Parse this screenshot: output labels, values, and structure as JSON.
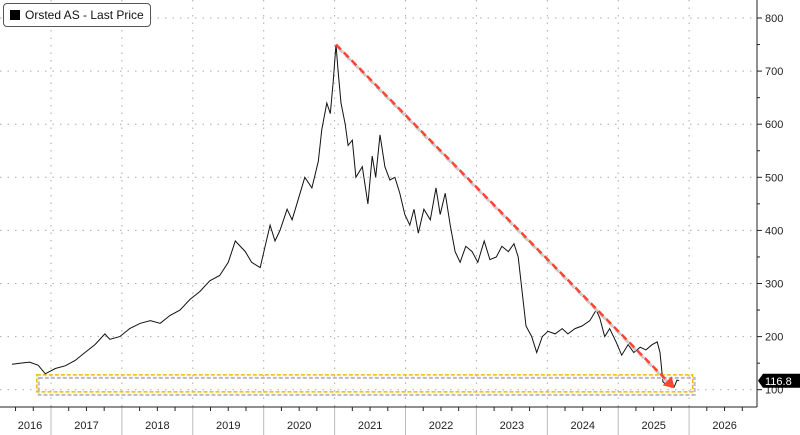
{
  "chart_data": {
    "type": "line",
    "title": "",
    "xlabel": "",
    "ylabel": "",
    "legend": {
      "position": "top-left",
      "entries": [
        "Orsted AS - Last Price"
      ]
    },
    "grid": true,
    "xlim": [
      2016.0,
      2026.0
    ],
    "ylim": [
      80,
      830
    ],
    "x_ticks": [
      "2016",
      "2017",
      "2018",
      "2019",
      "2020",
      "2021",
      "2022",
      "2023",
      "2024",
      "2025",
      "2026"
    ],
    "y_ticks": [
      100,
      200,
      300,
      400,
      500,
      600,
      700,
      800
    ],
    "last_value_label": "116.8",
    "series": [
      {
        "name": "Orsted AS - Last Price",
        "color": "#111111",
        "x": [
          2016.45,
          2016.56,
          2016.7,
          2016.82,
          2016.92,
          2017.06,
          2017.2,
          2017.34,
          2017.48,
          2017.62,
          2017.76,
          2017.83,
          2017.97,
          2018.11,
          2018.26,
          2018.4,
          2018.54,
          2018.68,
          2018.82,
          2018.96,
          2019.1,
          2019.24,
          2019.38,
          2019.5,
          2019.6,
          2019.74,
          2019.83,
          2019.95,
          2020.02,
          2020.09,
          2020.16,
          2020.23,
          2020.33,
          2020.4,
          2020.48,
          2020.58,
          2020.68,
          2020.77,
          2020.82,
          2020.89,
          2020.94,
          2020.98,
          2021.02,
          2021.05,
          2021.09,
          2021.15,
          2021.19,
          2021.25,
          2021.3,
          2021.39,
          2021.47,
          2021.53,
          2021.58,
          2021.64,
          2021.71,
          2021.78,
          2021.85,
          2021.92,
          2021.99,
          2022.06,
          2022.12,
          2022.18,
          2022.26,
          2022.35,
          2022.43,
          2022.49,
          2022.56,
          2022.63,
          2022.7,
          2022.77,
          2022.85,
          2022.94,
          2023.02,
          2023.11,
          2023.19,
          2023.28,
          2023.36,
          2023.45,
          2023.53,
          2023.59,
          2023.64,
          2023.7,
          2023.78,
          2023.85,
          2023.93,
          2024.01,
          2024.11,
          2024.21,
          2024.29,
          2024.39,
          2024.49,
          2024.6,
          2024.69,
          2024.74,
          2024.81,
          2024.88,
          2024.97,
          2025.05,
          2025.14,
          2025.22,
          2025.31,
          2025.39,
          2025.48,
          2025.55,
          2025.59,
          2025.63,
          2025.69,
          2025.73,
          2025.79,
          2025.83,
          2025.86
        ],
        "values": [
          148,
          150,
          152,
          146,
          130,
          140,
          145,
          155,
          170,
          185,
          205,
          195,
          200,
          215,
          225,
          230,
          225,
          240,
          250,
          270,
          285,
          305,
          315,
          340,
          380,
          360,
          340,
          330,
          370,
          410,
          380,
          400,
          440,
          420,
          455,
          500,
          480,
          530,
          590,
          640,
          620,
          680,
          750,
          700,
          640,
          600,
          560,
          570,
          500,
          520,
          450,
          540,
          500,
          580,
          520,
          495,
          500,
          470,
          430,
          410,
          440,
          395,
          440,
          420,
          480,
          430,
          470,
          410,
          360,
          340,
          370,
          360,
          340,
          380,
          345,
          350,
          370,
          360,
          375,
          350,
          290,
          220,
          200,
          170,
          200,
          210,
          205,
          215,
          205,
          215,
          220,
          230,
          250,
          235,
          200,
          215,
          190,
          165,
          185,
          170,
          180,
          175,
          185,
          190,
          170,
          115,
          108,
          120,
          105,
          118,
          116.8
        ]
      }
    ],
    "annotations": [
      {
        "type": "dashed-trendline",
        "color": "#ff4433",
        "from": [
          2021.02,
          750
        ],
        "to": [
          2025.74,
          110
        ]
      },
      {
        "type": "highlight-box",
        "color": "#f5b800",
        "x_range": [
          2016.8,
          2026.05
        ],
        "y_range": [
          96,
          128
        ]
      }
    ]
  }
}
